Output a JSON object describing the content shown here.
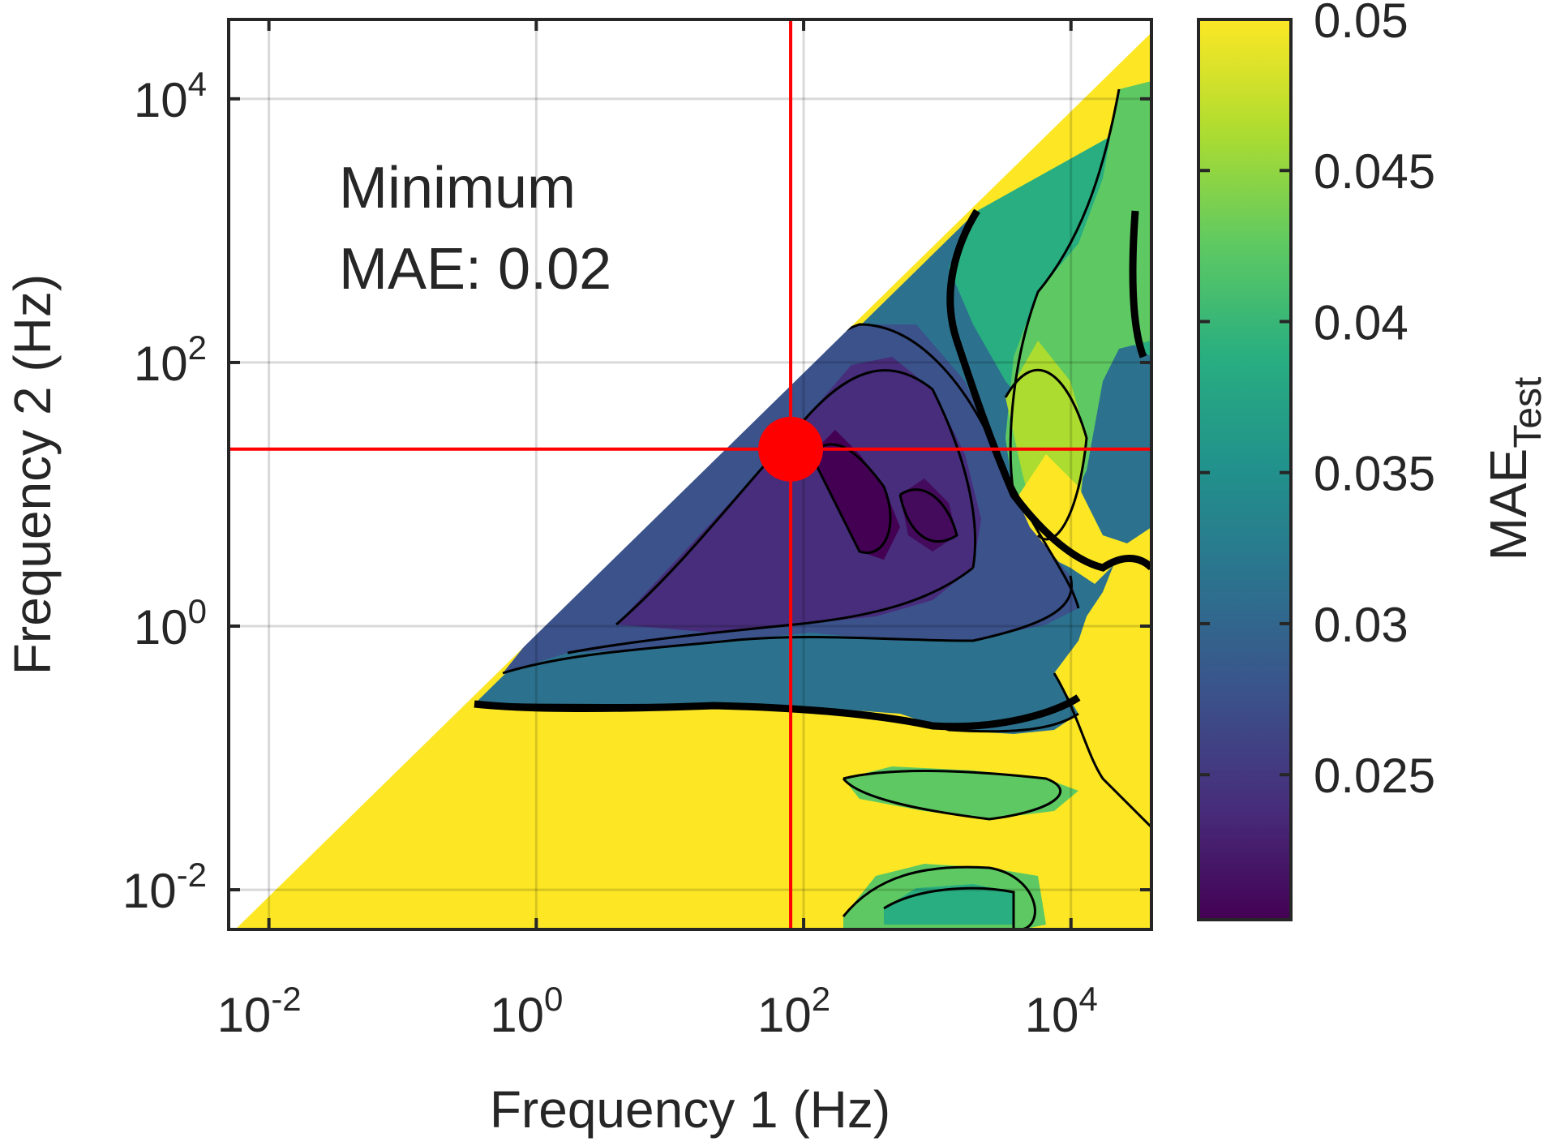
{
  "chart_data": {
    "type": "heatmap",
    "title": "",
    "xlabel": "Frequency 1 (Hz)",
    "ylabel": "Frequency 2 (Hz)",
    "x_scale": "log",
    "y_scale": "log",
    "xlim": [
      0.005,
      40000
    ],
    "ylim": [
      0.005,
      40000
    ],
    "grid": true,
    "x_ticks": [
      {
        "value": 0.01,
        "label": "10",
        "exp": "-2"
      },
      {
        "value": 1,
        "label": "10",
        "exp": "0"
      },
      {
        "value": 100,
        "label": "10",
        "exp": "2"
      },
      {
        "value": 10000,
        "label": "10",
        "exp": "4"
      }
    ],
    "y_ticks": [
      {
        "value": 0.01,
        "label": "10",
        "exp": "-2"
      },
      {
        "value": 1,
        "label": "10",
        "exp": "0"
      },
      {
        "value": 100,
        "label": "10",
        "exp": "2"
      },
      {
        "value": 10000,
        "label": "10",
        "exp": "4"
      }
    ],
    "colorbar": {
      "label_main": "MAE",
      "label_sub": "Test",
      "range": [
        0.0202,
        0.05
      ],
      "ticks": [
        "0.025",
        "0.03",
        "0.035",
        "0.04",
        "0.045",
        "0.05"
      ],
      "colormap": "viridis"
    },
    "minimum": {
      "x": 80,
      "y": 22,
      "mae": 0.02
    },
    "annotation": {
      "line1": "Minimum",
      "line2": "MAE: 0.02"
    },
    "colors": {
      "yellow": "#fde725",
      "dark_purple": "#440154",
      "guide_lines": "#ff0000",
      "min_marker": "#ff0000"
    }
  }
}
